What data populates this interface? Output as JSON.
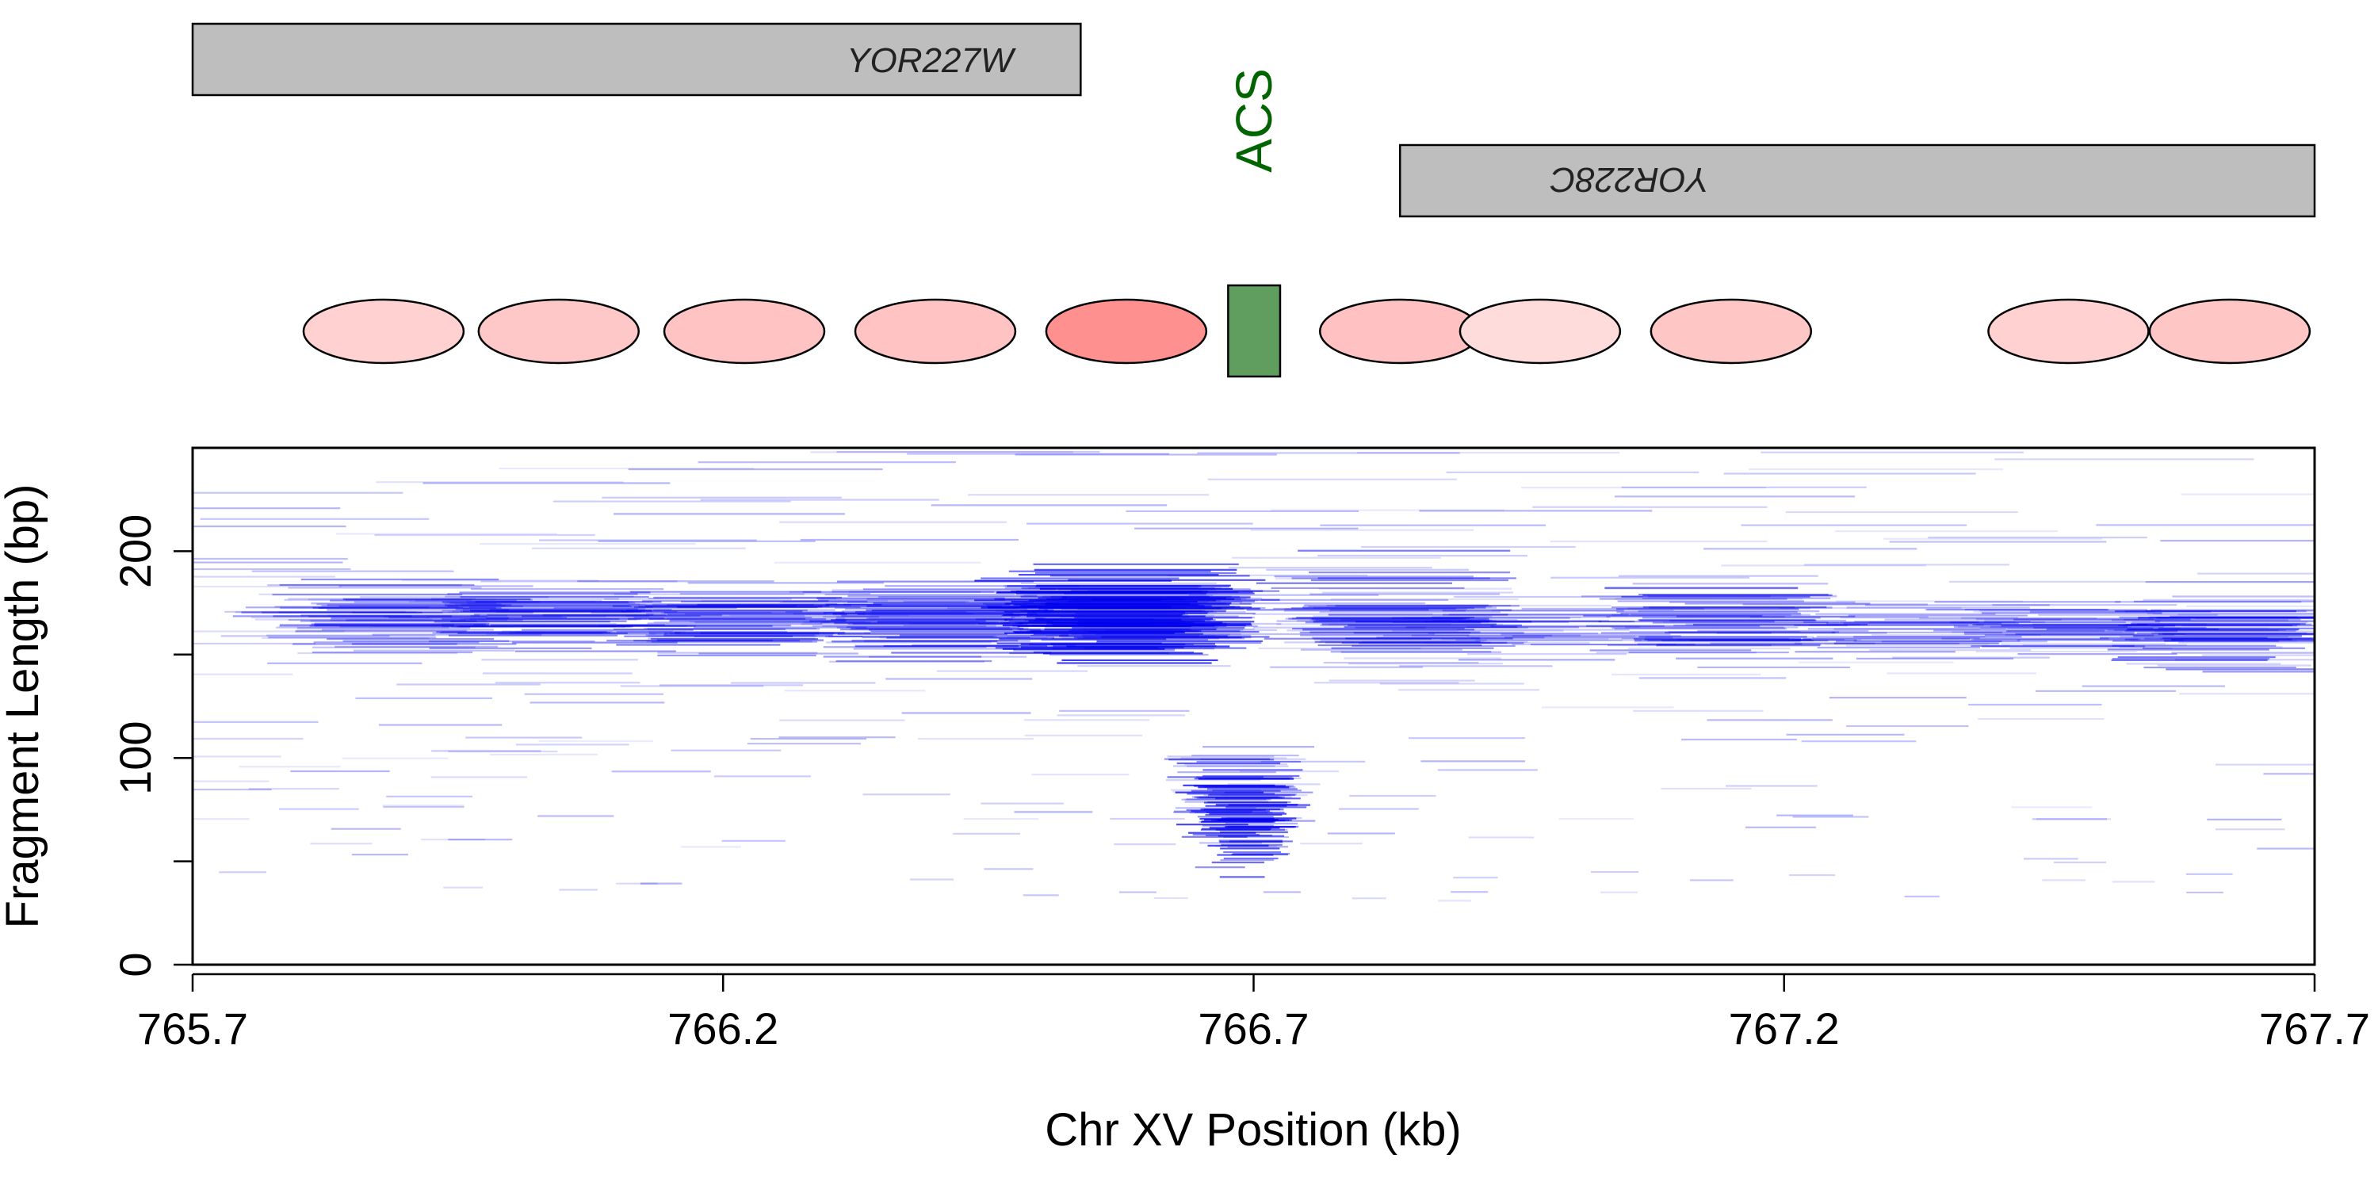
{
  "chart_data": {
    "type": "scatter",
    "subtype": "fragment-segment-plot",
    "xlabel": "Chr XV Position (kb)",
    "ylabel": "Fragment Length (bp)",
    "xlim": [
      765.7,
      767.7
    ],
    "ylim": [
      0,
      250
    ],
    "x_ticks": [
      765.7,
      766.2,
      766.7,
      767.2,
      767.7
    ],
    "x_tick_labels": [
      "765.7",
      "766.2",
      "766.7",
      "767.2",
      "767.7"
    ],
    "y_ticks": [
      0,
      50,
      100,
      150,
      200
    ],
    "y_tick_labels": [
      "0",
      "",
      "100",
      "",
      "200"
    ],
    "genes": [
      {
        "name": "YOR227W",
        "start": 765.7,
        "end": 766.537,
        "strand": "+"
      },
      {
        "name": "YOR228C",
        "start": 766.838,
        "end": 767.7,
        "strand": "-"
      }
    ],
    "acs": {
      "label": "ACS",
      "start": 766.676,
      "end": 766.725,
      "color": "#006400",
      "fill": "#5f9e5f"
    },
    "nucleosomes": [
      {
        "center": 765.88,
        "occupancy": 0.25
      },
      {
        "center": 766.045,
        "occupancy": 0.33
      },
      {
        "center": 766.22,
        "occupancy": 0.38
      },
      {
        "center": 766.4,
        "occupancy": 0.38
      },
      {
        "center": 766.58,
        "occupancy": 0.85
      },
      {
        "center": 766.838,
        "occupancy": 0.4
      },
      {
        "center": 766.97,
        "occupancy": 0.15
      },
      {
        "center": 767.15,
        "occupancy": 0.35
      },
      {
        "center": 767.468,
        "occupancy": 0.25
      },
      {
        "center": 767.62,
        "occupancy": 0.35
      }
    ],
    "fragment_clusters": [
      {
        "center": 765.88,
        "length": 168,
        "spread_x": 0.06,
        "spread_y": 14,
        "count": 70,
        "intensity": 0.35
      },
      {
        "center": 766.045,
        "length": 168,
        "spread_x": 0.06,
        "spread_y": 12,
        "count": 75,
        "intensity": 0.4
      },
      {
        "center": 766.22,
        "length": 165,
        "spread_x": 0.05,
        "spread_y": 12,
        "count": 70,
        "intensity": 0.45
      },
      {
        "center": 766.4,
        "length": 165,
        "spread_x": 0.05,
        "spread_y": 14,
        "count": 85,
        "intensity": 0.45
      },
      {
        "center": 766.58,
        "length": 170,
        "spread_x": 0.05,
        "spread_y": 16,
        "count": 180,
        "intensity": 0.75
      },
      {
        "center": 766.69,
        "length": 75,
        "spread_x": 0.025,
        "spread_y": 22,
        "count": 120,
        "intensity": 0.7
      },
      {
        "center": 766.838,
        "length": 165,
        "spread_x": 0.05,
        "spread_y": 20,
        "count": 90,
        "intensity": 0.45
      },
      {
        "center": 766.97,
        "length": 162,
        "spread_x": 0.06,
        "spread_y": 12,
        "count": 35,
        "intensity": 0.25
      },
      {
        "center": 767.15,
        "length": 168,
        "spread_x": 0.05,
        "spread_y": 14,
        "count": 70,
        "intensity": 0.45
      },
      {
        "center": 767.33,
        "length": 160,
        "spread_x": 0.06,
        "spread_y": 14,
        "count": 35,
        "intensity": 0.3
      },
      {
        "center": 767.468,
        "length": 162,
        "spread_x": 0.05,
        "spread_y": 12,
        "count": 45,
        "intensity": 0.35
      },
      {
        "center": 767.62,
        "length": 160,
        "spread_x": 0.04,
        "spread_y": 14,
        "count": 70,
        "intensity": 0.45
      }
    ],
    "fragment_color": "#0000ee",
    "nucleosome_fill_low": "#ffecec",
    "nucleosome_fill_high": "#ff8080",
    "gene_fill": "#bebebe"
  }
}
